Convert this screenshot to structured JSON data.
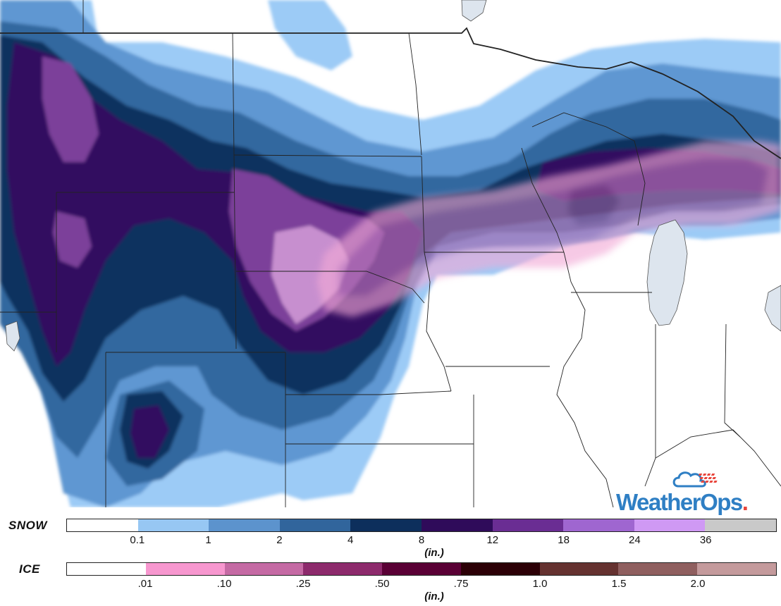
{
  "map": {
    "legend_type": "accumulation",
    "snow_field_colors": [
      "#9ccbf6",
      "#5f97d2",
      "#33679f",
      "#0f325e",
      "#330d61",
      "#7b3f9a",
      "#c78fcf"
    ],
    "ice_field_colors": [
      "#f2a9d6",
      "#c17cbf",
      "#9c5a9e"
    ],
    "land_color": "#ffffff",
    "lake_color": "#dde5ee",
    "border_color": "#222222"
  },
  "brand": {
    "name": "WeatherOps",
    "suffix": ".",
    "icon": "cloud-sun-icon",
    "primary_color": "#2f7fc4",
    "accent_color": "#e8453c"
  },
  "legend": {
    "snow": {
      "label": "SNOW",
      "unit": "(in.)",
      "colors": [
        "#ffffff",
        "#97c7f3",
        "#5c93cd",
        "#31659c",
        "#0d2f5c",
        "#2f0b5a",
        "#6a2d93",
        "#9f66d0",
        "#cf99f4",
        "#c9c9c9"
      ],
      "ticks": [
        "0.1",
        "1",
        "2",
        "4",
        "8",
        "12",
        "18",
        "24",
        "36"
      ]
    },
    "ice": {
      "label": "ICE",
      "unit": "(in.)",
      "colors": [
        "#ffffff",
        "#f797cf",
        "#c56aa4",
        "#8d2a6c",
        "#5a0035",
        "#2c0006",
        "#653230",
        "#8f5f5f",
        "#c49a9c"
      ],
      "ticks": [
        ".01",
        ".10",
        ".25",
        ".50",
        ".75",
        "1.0",
        "1.5",
        "2.0"
      ]
    }
  }
}
